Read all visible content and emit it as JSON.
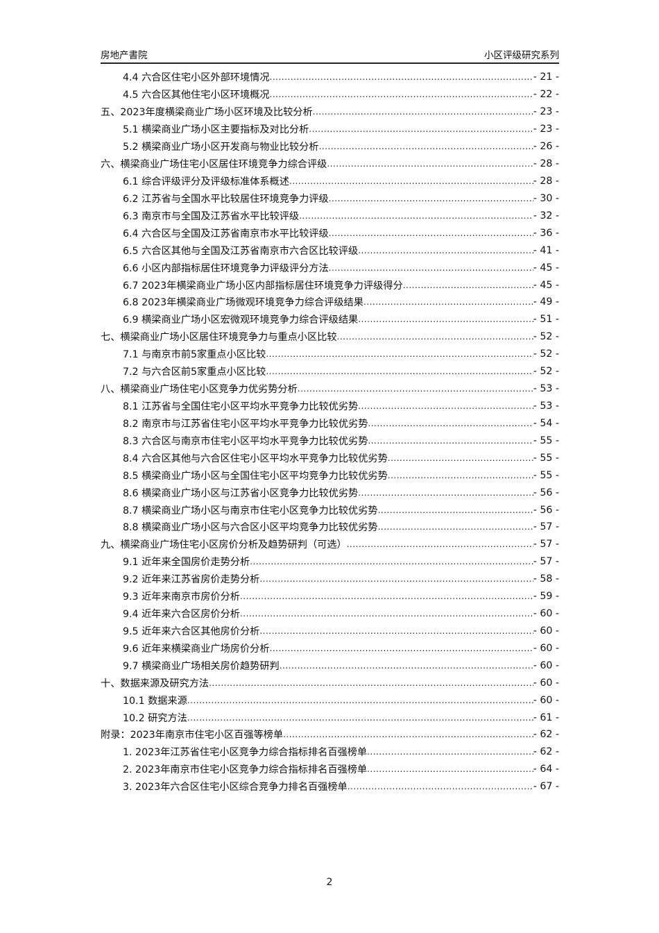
{
  "header": {
    "left": "房地产書院",
    "right": "小区评级研究系列"
  },
  "toc": [
    {
      "level": 2,
      "title": "4.4 六合区住宅小区外部环境情况",
      "page": "- 21 -"
    },
    {
      "level": 2,
      "title": "4.5 六合区其他住宅小区环境概况",
      "page": "- 22 -"
    },
    {
      "level": 1,
      "title": "五、2023年度横梁商业广场小区环境及比较分析",
      "page": "- 23 -"
    },
    {
      "level": 2,
      "title": "5.1 横梁商业广场小区主要指标及对比分析",
      "page": "- 23 -"
    },
    {
      "level": 2,
      "title": "5.2 横梁商业广场小区开发商与物业比较分析",
      "page": "- 26 -"
    },
    {
      "level": 1,
      "title": "六、横梁商业广场住宅小区居住环境竞争力综合评级",
      "page": "- 28 -"
    },
    {
      "level": 2,
      "title": "6.1 综合评级评分及评级标准体系概述",
      "page": "- 28 -"
    },
    {
      "level": 2,
      "title": "6.2 江苏省与全国水平比较居住环境竞争力评级",
      "page": "- 30 -"
    },
    {
      "level": 2,
      "title": "6.3 南京市与全国及江苏省水平比较评级",
      "page": "- 32 -"
    },
    {
      "level": 2,
      "title": "6.4 六合区与全国及江苏省南京市水平比较评级",
      "page": "- 36 -"
    },
    {
      "level": 2,
      "title": "6.5 六合区其他与全国及江苏省南京市六合区比较评级",
      "page": "- 41 -"
    },
    {
      "level": 2,
      "title": "6.6 小区内部指标居住环境竞争力评级评分方法",
      "page": "- 45 -"
    },
    {
      "level": 2,
      "title": "6.7 2023年横梁商业广场小区内部指标居住环境竞争力评级得分",
      "page": "- 45 -"
    },
    {
      "level": 2,
      "title": "6.8 2023年横梁商业广场微观环境竞争力综合评级结果",
      "page": "- 49 -"
    },
    {
      "level": 2,
      "title": "6.9 横梁商业广场小区宏微观环境竞争力综合评级结果",
      "page": "- 51 -"
    },
    {
      "level": 1,
      "title": "七、横梁商业广场小区居住环境竞争力与重点小区比较",
      "page": "- 52 -"
    },
    {
      "level": 2,
      "title": "7.1 与南京市前5家重点小区比较",
      "page": "- 52 -"
    },
    {
      "level": 2,
      "title": "7.2 与六合区前5家重点小区比较",
      "page": "- 52 -"
    },
    {
      "level": 1,
      "title": "八、横梁商业广场住宅小区竞争力优劣势分析",
      "page": "- 53 -"
    },
    {
      "level": 2,
      "title": "8.1 江苏省与全国住宅小区平均水平竞争力比较优劣势",
      "page": "- 53 -"
    },
    {
      "level": 2,
      "title": "8.2 南京市与江苏省住宅小区平均水平竞争力比较优劣势",
      "page": "- 54 -"
    },
    {
      "level": 2,
      "title": "8.3 六合区与南京市住宅小区平均水平竞争力比较优劣势",
      "page": "- 55 -"
    },
    {
      "level": 2,
      "title": "8.4 六合区其他与六合区住宅小区平均水平竞争力比较优劣势",
      "page": "- 55 -"
    },
    {
      "level": 2,
      "title": "8.5 横梁商业广场小区与全国住宅小区平均竞争力比较优劣势",
      "page": "- 55 -"
    },
    {
      "level": 2,
      "title": "8.6 横梁商业广场小区与江苏省小区竞争力比较优劣势",
      "page": "- 56 -"
    },
    {
      "level": 2,
      "title": "8.7 横梁商业广场小区与南京市住宅小区竞争力比较优劣势",
      "page": "- 56 -"
    },
    {
      "level": 2,
      "title": "8.8 横梁商业广场小区与六合区小区平均竞争力比较优劣势",
      "page": "- 57 -"
    },
    {
      "level": 1,
      "title": "九、横梁商业广场住宅小区房价分析及趋势研判（可选）",
      "page": "- 57 -"
    },
    {
      "level": 2,
      "title": "9.1 近年来全国房价走势分析",
      "page": "- 57 -"
    },
    {
      "level": 2,
      "title": "9.2 近年来江苏省房价走势分析",
      "page": "- 58 -"
    },
    {
      "level": 2,
      "title": "9.3 近年来南京市房价分析",
      "page": "- 59 -"
    },
    {
      "level": 2,
      "title": "9.4 近年来六合区房价分析",
      "page": "- 60 -"
    },
    {
      "level": 2,
      "title": "9.5 近年来六合区其他房价分析",
      "page": "- 60 -"
    },
    {
      "level": 2,
      "title": "9.6 近年来横梁商业广场房价分析",
      "page": "- 60 -"
    },
    {
      "level": 2,
      "title": "9.7 横梁商业广场相关房价趋势研判",
      "page": "- 60 -"
    },
    {
      "level": 1,
      "title": "十、数据来源及研究方法",
      "page": "- 60 -"
    },
    {
      "level": 2,
      "title": "10.1 数据来源",
      "page": "- 60 -"
    },
    {
      "level": 2,
      "title": "10.2 研究方法",
      "page": "- 61 -"
    },
    {
      "level": 1,
      "title": "附录：2023年南京市住宅小区百强等榜单",
      "page": "- 62 -"
    },
    {
      "level": 2,
      "title": "1. 2023年江苏省住宅小区竞争力综合指标排名百强榜单",
      "page": "- 62 -"
    },
    {
      "level": 2,
      "title": "2. 2023年南京市住宅小区竞争力综合指标排名百强榜单",
      "page": "- 64 -"
    },
    {
      "level": 2,
      "title": "3. 2023年六合区住宅小区综合竞争力排名百强榜单",
      "page": "- 67 -"
    }
  ],
  "footer": {
    "page_number": "2"
  }
}
